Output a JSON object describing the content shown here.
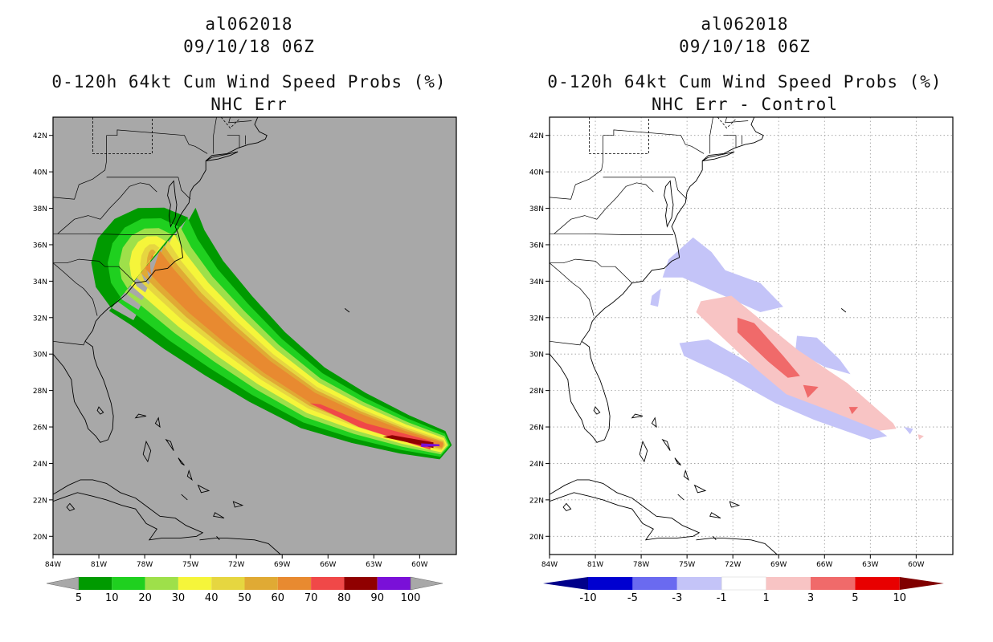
{
  "chart_data": [
    {
      "type": "heatmap",
      "title_lines": [
        "al062018",
        "09/10/18 06Z",
        "0-120h 64kt Cum Wind Speed Probs (%)",
        "NHC Err"
      ],
      "y_ticks": [
        "20N",
        "22N",
        "24N",
        "26N",
        "28N",
        "30N",
        "32N",
        "34N",
        "36N",
        "38N",
        "40N",
        "42N"
      ],
      "x_ticks": [
        "84W",
        "81W",
        "78W",
        "75W",
        "72W",
        "69W",
        "66W",
        "63W",
        "60W"
      ],
      "lat_range": [
        19,
        43
      ],
      "lon_range": [
        -84,
        -57.6
      ],
      "grid": false,
      "background": "#a8a8a8",
      "legend": {
        "labels": [
          "5",
          "10",
          "20",
          "30",
          "40",
          "50",
          "60",
          "70",
          "80",
          "90",
          "100"
        ],
        "colors": [
          "#009a00",
          "#1fd01f",
          "#9ee04a",
          "#f5f53a",
          "#e6d640",
          "#e0aa34",
          "#e88a30",
          "#f04848",
          "#900000",
          "#7a10d8"
        ],
        "end_color": "#a8a8a8"
      }
    },
    {
      "type": "heatmap",
      "title_lines": [
        "al062018",
        "09/10/18 06Z",
        "0-120h 64kt Cum Wind Speed Probs (%)",
        "NHC Err - Control"
      ],
      "y_ticks": [
        "20N",
        "22N",
        "24N",
        "26N",
        "28N",
        "30N",
        "32N",
        "34N",
        "36N",
        "38N",
        "40N",
        "42N"
      ],
      "x_ticks": [
        "84W",
        "81W",
        "78W",
        "75W",
        "72W",
        "69W",
        "66W",
        "63W",
        "60W"
      ],
      "lat_range": [
        19,
        43
      ],
      "lon_range": [
        -84,
        -57.6
      ],
      "grid": true,
      "background": "#ffffff",
      "legend": {
        "labels": [
          "-10",
          "-5",
          "-3",
          "-1",
          "1",
          "3",
          "5",
          "10"
        ],
        "colors": [
          "#0000d0",
          "#6a6af0",
          "#c4c4f8",
          "#ffffff",
          "#f8c4c4",
          "#f06a6a",
          "#e80000"
        ],
        "end_left": "#00008a",
        "end_right": "#800000"
      }
    }
  ]
}
